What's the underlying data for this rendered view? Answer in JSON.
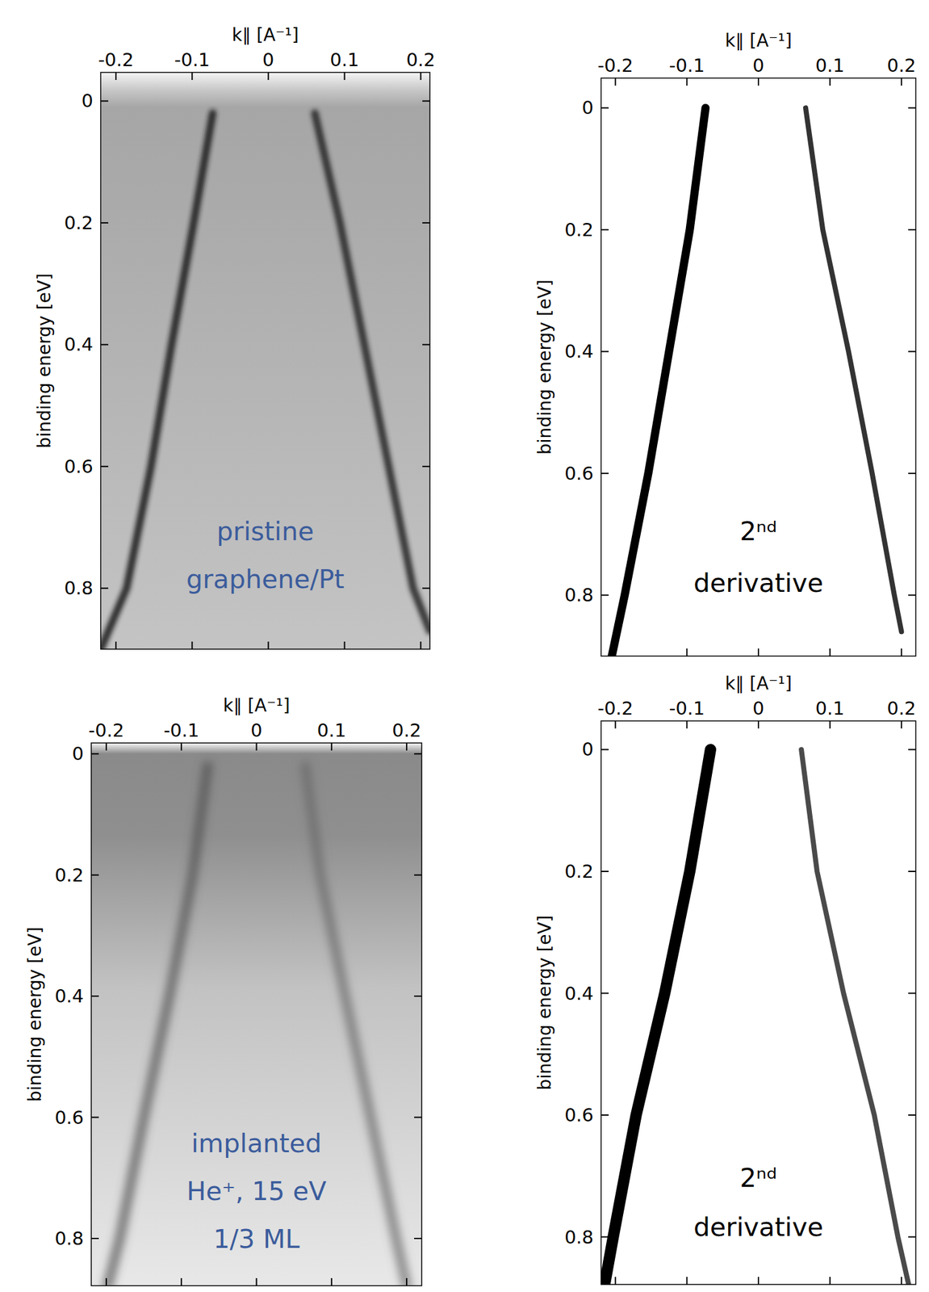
{
  "chart_data": [
    {
      "type": "line",
      "x_label": "k∥ [A⁻¹]",
      "y_label": "binding energy [eV]",
      "annotation": [
        "pristine",
        "graphene/Pt"
      ],
      "xlim": [
        -0.22,
        0.212
      ],
      "ylim": [
        -0.047,
        0.9
      ],
      "xticks": [
        -0.2,
        -0.1,
        0,
        0.1,
        0.2
      ],
      "yticks": [
        0,
        0.2,
        0.4,
        0.6,
        0.8
      ],
      "series": [
        {
          "color": "#1e1e1e",
          "x": [
            -0.073,
            -0.098,
            -0.127,
            -0.154,
            -0.186,
            -0.22
          ],
          "values": [
            0.02,
            0.2,
            0.4,
            0.6,
            0.8,
            0.9
          ]
        },
        {
          "color": "#2a2a2a",
          "x": [
            0.061,
            0.094,
            0.126,
            0.158,
            0.19,
            0.212
          ],
          "values": [
            0.02,
            0.2,
            0.4,
            0.6,
            0.8,
            0.87
          ]
        }
      ]
    },
    {
      "type": "line",
      "x_label": "k∥ [A⁻¹]",
      "y_label": "binding energy [eV]",
      "annotation": [
        "2ⁿᵈ",
        "derivative"
      ],
      "xlim": [
        -0.22,
        0.22
      ],
      "ylim": [
        -0.049,
        0.9
      ],
      "xticks": [
        -0.2,
        -0.1,
        0,
        0.1,
        0.2
      ],
      "yticks": [
        0,
        0.2,
        0.4,
        0.6,
        0.8
      ],
      "series": [
        {
          "color": "#000000",
          "x": [
            -0.074,
            -0.096,
            -0.125,
            -0.154,
            -0.187,
            -0.205
          ],
          "values": [
            0.0,
            0.2,
            0.4,
            0.6,
            0.8,
            0.9
          ]
        },
        {
          "color": "#333333",
          "x": [
            0.066,
            0.09,
            0.126,
            0.159,
            0.19,
            0.2
          ],
          "values": [
            0.0,
            0.2,
            0.4,
            0.6,
            0.8,
            0.86
          ]
        }
      ]
    },
    {
      "type": "line",
      "x_label": "k∥ [A⁻¹]",
      "y_label": "binding energy [eV]",
      "annotation": [
        "implanted",
        "He⁺, 15 eV",
        "1/3 ML"
      ],
      "xlim": [
        -0.22,
        0.22
      ],
      "ylim": [
        -0.018,
        0.878
      ],
      "xticks": [
        -0.2,
        -0.1,
        0,
        0.1,
        0.2
      ],
      "yticks": [
        0,
        0.2,
        0.4,
        0.6,
        0.8
      ],
      "series": [
        {
          "color": "#505050",
          "x": [
            -0.065,
            -0.085,
            -0.116,
            -0.15,
            -0.182,
            -0.198
          ],
          "values": [
            0.02,
            0.2,
            0.4,
            0.6,
            0.8,
            0.878
          ]
        },
        {
          "color": "#6a6a6a",
          "x": [
            0.065,
            0.085,
            0.118,
            0.152,
            0.186,
            0.2
          ],
          "values": [
            0.02,
            0.2,
            0.4,
            0.6,
            0.8,
            0.878
          ]
        }
      ]
    },
    {
      "type": "line",
      "x_label": "k∥ [A⁻¹]",
      "y_label": "binding energy [eV]",
      "annotation": [
        "2ⁿᵈ",
        "derivative"
      ],
      "xlim": [
        -0.22,
        0.22
      ],
      "ylim": [
        -0.047,
        0.878
      ],
      "xticks": [
        -0.2,
        -0.1,
        0,
        0.1,
        0.2
      ],
      "yticks": [
        0,
        0.2,
        0.4,
        0.6,
        0.8
      ],
      "series": [
        {
          "color": "#000000",
          "x": [
            -0.067,
            -0.096,
            -0.131,
            -0.171,
            -0.203,
            -0.215
          ],
          "values": [
            0.0,
            0.2,
            0.4,
            0.6,
            0.8,
            0.878
          ]
        },
        {
          "color": "#4a4a4a",
          "x": [
            0.06,
            0.082,
            0.119,
            0.162,
            0.195,
            0.21
          ],
          "values": [
            0.0,
            0.2,
            0.4,
            0.6,
            0.8,
            0.878
          ]
        }
      ]
    }
  ]
}
